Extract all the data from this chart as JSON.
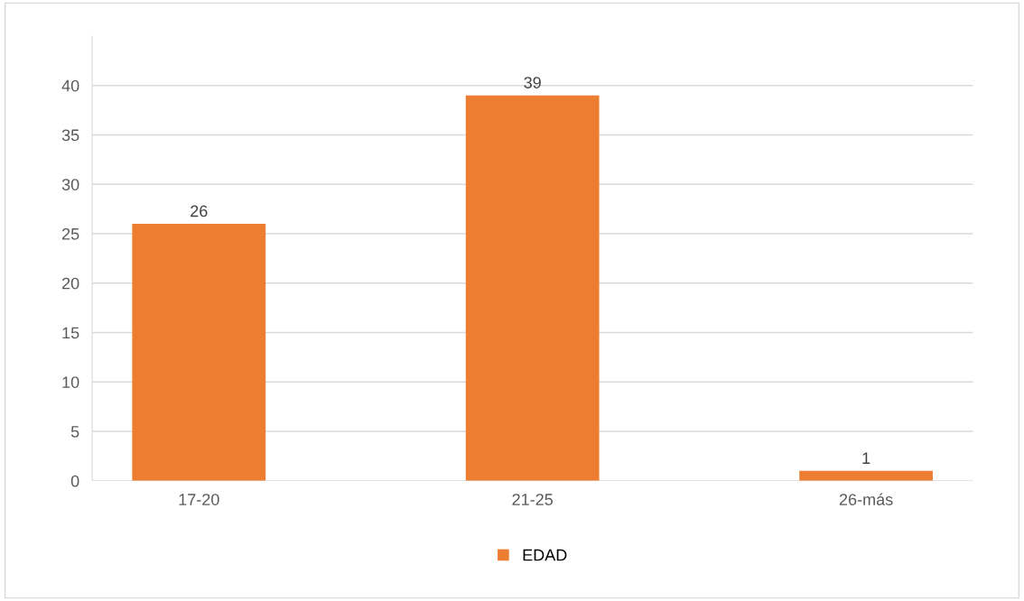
{
  "chart_data": {
    "type": "bar",
    "categories": [
      "17-20",
      "21-25",
      "26-más"
    ],
    "series": [
      {
        "name": "EDAD",
        "color": "#ed7d31",
        "values": [
          26,
          39,
          1
        ]
      }
    ],
    "ylim": [
      0,
      45
    ],
    "yticks": [
      0,
      5,
      10,
      15,
      20,
      25,
      30,
      35,
      40
    ],
    "grid": "y",
    "legend": "bottom",
    "data_labels": true
  }
}
